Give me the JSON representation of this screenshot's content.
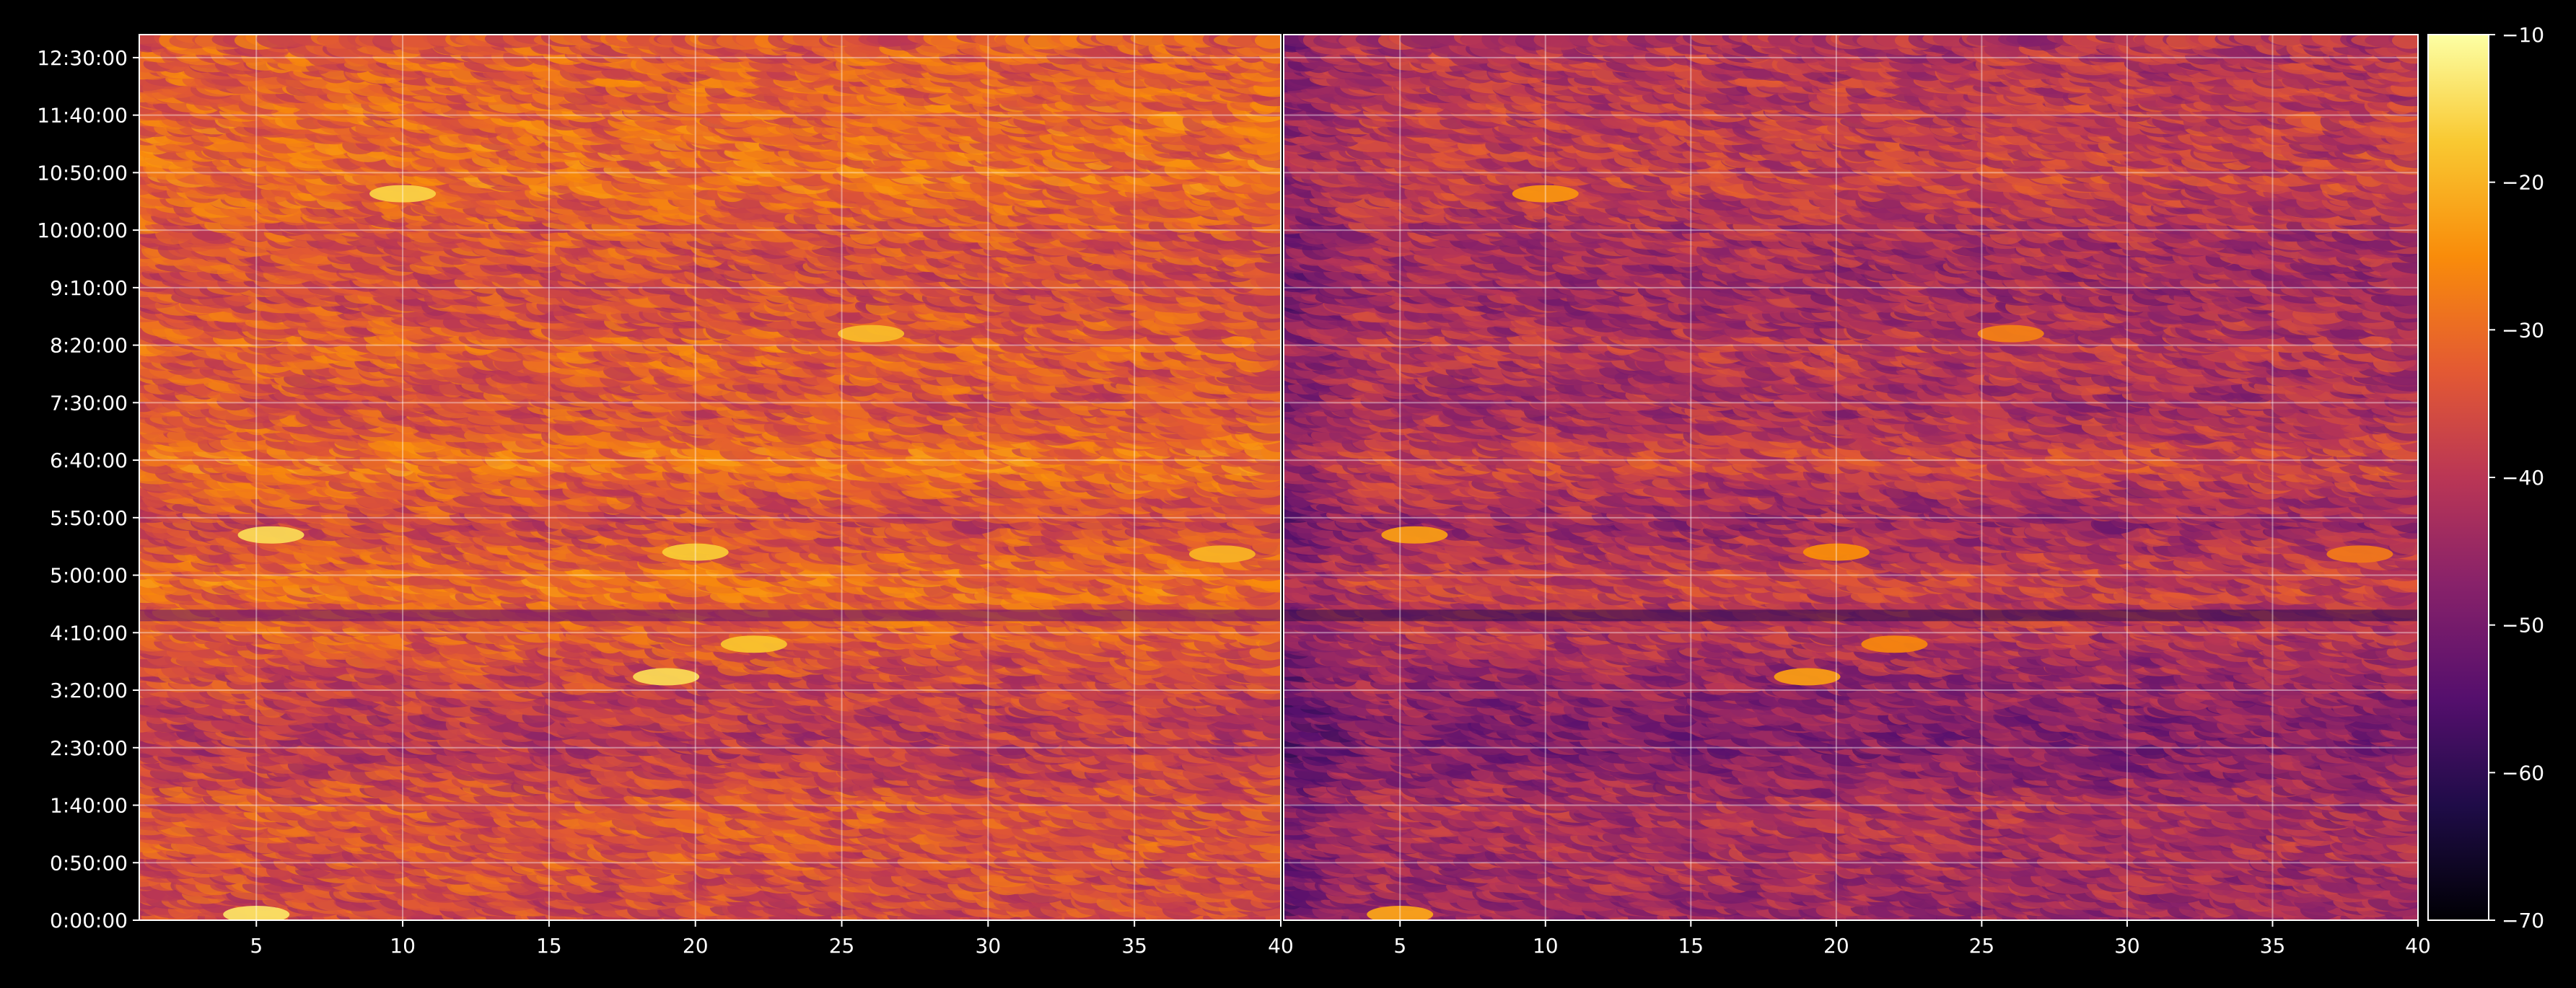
{
  "chart_data": {
    "type": "heatmap",
    "title": "",
    "xlabel": "",
    "ylabel": "",
    "panels": [
      {
        "name": "",
        "xlim": [
          1,
          40
        ],
        "xticks": [
          5,
          10,
          15,
          20,
          25,
          30,
          35,
          40
        ],
        "value_offset": 0
      },
      {
        "name": "",
        "xlim": [
          1,
          40
        ],
        "xticks": [
          5,
          10,
          15,
          20,
          25,
          30,
          35,
          40
        ],
        "value_offset": -8
      }
    ],
    "y_unit": "time",
    "y_range_seconds": [
      0,
      46200
    ],
    "yticks": [
      "0:00:00",
      "0:50:00",
      "1:40:00",
      "2:30:00",
      "3:20:00",
      "4:10:00",
      "5:00:00",
      "5:50:00",
      "6:40:00",
      "7:30:00",
      "8:20:00",
      "9:10:00",
      "10:00:00",
      "10:50:00",
      "11:40:00",
      "12:30:00"
    ],
    "grid": true,
    "colormap": "inferno",
    "colorbar": {
      "range": [
        -70,
        -10
      ],
      "ticks": [
        "−10",
        "−20",
        "−30",
        "−40",
        "−50",
        "−60",
        "−70"
      ],
      "tick_values": [
        -10,
        -20,
        -30,
        -40,
        -50,
        -60,
        -70
      ]
    },
    "rows_time_seconds": [
      0,
      3000,
      6000,
      9000,
      12000,
      15000,
      18000,
      21000,
      24000,
      27000,
      30000,
      33000,
      36000,
      39000,
      42000,
      45000
    ],
    "row_profile": [
      -36,
      -35,
      -34,
      -40,
      -38,
      -33,
      -30,
      -37,
      -29,
      -35,
      -32,
      -36,
      -34,
      -30,
      -31,
      -33
    ],
    "hotspots": [
      {
        "x": 5,
        "t": 300,
        "v": -14
      },
      {
        "x": 5.5,
        "t": 20100,
        "v": -15
      },
      {
        "x": 10,
        "t": 37900,
        "v": -16
      },
      {
        "x": 19,
        "t": 12700,
        "v": -15
      },
      {
        "x": 20,
        "t": 19200,
        "v": -17
      },
      {
        "x": 22,
        "t": 14400,
        "v": -18
      },
      {
        "x": 26,
        "t": 30600,
        "v": -19
      },
      {
        "x": 38,
        "t": 19100,
        "v": -20
      }
    ],
    "dark_band": {
      "t": 15900,
      "v": -52
    }
  },
  "colors": {
    "background": "#000000",
    "axis": "#ffffff",
    "grid": "#ffffff"
  }
}
